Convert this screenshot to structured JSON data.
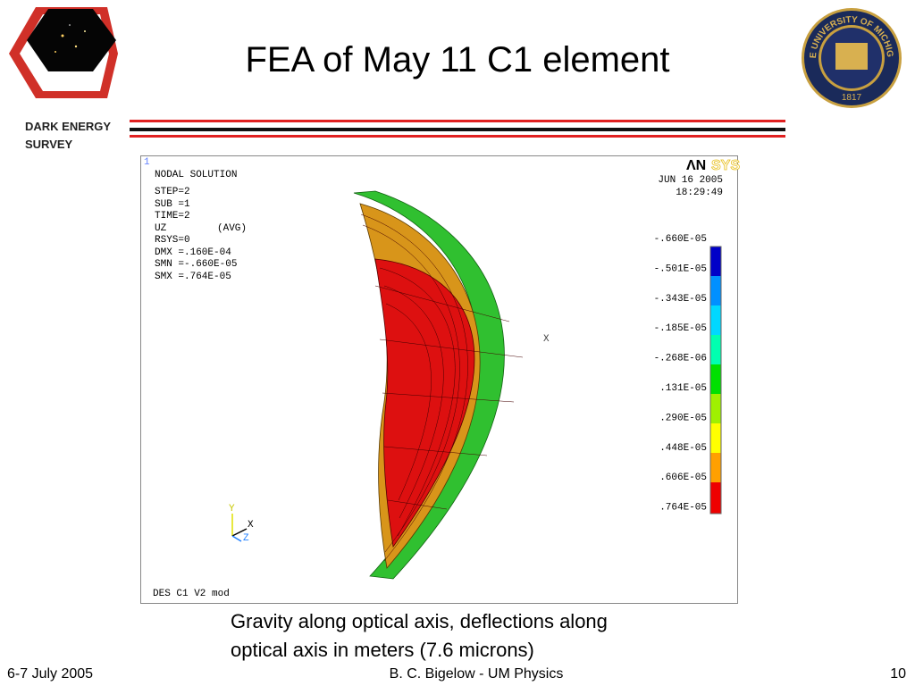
{
  "header": {
    "title": "FEA of May 11 C1 element",
    "logo_text": [
      "DARK ENERGY",
      "SURVEY"
    ],
    "seal": {
      "text": "THE UNIVERSITY OF MICHIGAN",
      "year": "1817"
    }
  },
  "figure": {
    "corner_number": "1",
    "info": [
      "NODAL SOLUTION",
      "STEP=2",
      "SUB =1",
      "TIME=2"
    ],
    "uz_line": [
      "UZ",
      "(AVG)"
    ],
    "info2": [
      "RSYS=0",
      "DMX =.160E-04",
      "SMN =-.660E-05",
      "SMX =.764E-05"
    ],
    "brand": [
      "ΛN",
      "SYS"
    ],
    "date": "JUN 16 2005",
    "time": "18:29:49",
    "legend_labels": [
      "-.660E-05",
      "-.501E-05",
      "-.343E-05",
      "-.185E-05",
      "-.268E-06",
      ".131E-05",
      ".290E-05",
      ".448E-05",
      ".606E-05",
      ".764E-05"
    ],
    "node_label": "X",
    "triad": {
      "y": "Y",
      "x": "X",
      "z": "Z"
    },
    "footer": "DES C1 V2 mod"
  },
  "caption": [
    "Gravity along optical axis, deflections along",
    "optical axis in meters (7.6 microns)"
  ],
  "footer": {
    "date": "6-7 July 2005",
    "author": "B. C. Bigelow - UM Physics",
    "page": "10"
  }
}
